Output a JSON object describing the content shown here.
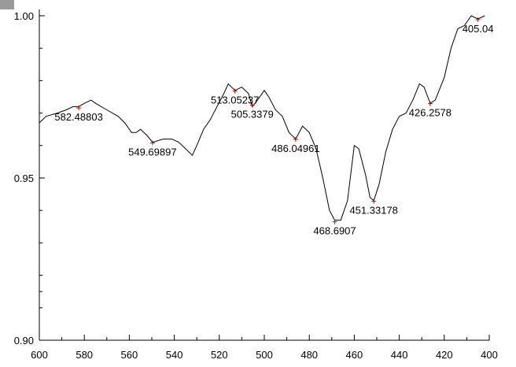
{
  "chart_data": {
    "type": "line",
    "title": "",
    "xlabel": "",
    "ylabel": "",
    "xlim": [
      600,
      400
    ],
    "ylim": [
      0.9,
      1.0
    ],
    "x_reversed": true,
    "grid": false,
    "x_ticks": [
      600,
      580,
      560,
      540,
      520,
      500,
      480,
      460,
      440,
      420,
      400
    ],
    "y_ticks": [
      {
        "value": 1.0,
        "label": "1.00"
      },
      {
        "value": 0.95,
        "label": "0.95"
      },
      {
        "value": 0.9,
        "label": "0.90"
      }
    ],
    "colors": {
      "line": "#000000",
      "marker": "#cc0000",
      "badge": "#9a9a9a"
    },
    "series": [
      {
        "points": [
          [
            600,
            0.967
          ],
          [
            597,
            0.969
          ],
          [
            592,
            0.97
          ],
          [
            588,
            0.971
          ],
          [
            585,
            0.972
          ],
          [
            582.5,
            0.972
          ],
          [
            580,
            0.973
          ],
          [
            577,
            0.974
          ],
          [
            575,
            0.973
          ],
          [
            570,
            0.971
          ],
          [
            565,
            0.969
          ],
          [
            562,
            0.967
          ],
          [
            559,
            0.964
          ],
          [
            557,
            0.964
          ],
          [
            555,
            0.965
          ],
          [
            552,
            0.963
          ],
          [
            549.7,
            0.961
          ],
          [
            545,
            0.962
          ],
          [
            541,
            0.962
          ],
          [
            538,
            0.961
          ],
          [
            535,
            0.959
          ],
          [
            532,
            0.957
          ],
          [
            530,
            0.96
          ],
          [
            527,
            0.965
          ],
          [
            524,
            0.968
          ],
          [
            521,
            0.972
          ],
          [
            518,
            0.976
          ],
          [
            516,
            0.979
          ],
          [
            513.05,
            0.977
          ],
          [
            510,
            0.978
          ],
          [
            507,
            0.976
          ],
          [
            505.34,
            0.972
          ],
          [
            503,
            0.974
          ],
          [
            500,
            0.977
          ],
          [
            498,
            0.975
          ],
          [
            495,
            0.971
          ],
          [
            492,
            0.969
          ],
          [
            489,
            0.964
          ],
          [
            486.05,
            0.962
          ],
          [
            483,
            0.966
          ],
          [
            480,
            0.964
          ],
          [
            477,
            0.959
          ],
          [
            474,
            0.95
          ],
          [
            471,
            0.94
          ],
          [
            468.69,
            0.937
          ],
          [
            466,
            0.937
          ],
          [
            463,
            0.943
          ],
          [
            460,
            0.96
          ],
          [
            458,
            0.959
          ],
          [
            455,
            0.951
          ],
          [
            453,
            0.944
          ],
          [
            451.33,
            0.943
          ],
          [
            449,
            0.948
          ],
          [
            446,
            0.958
          ],
          [
            443,
            0.965
          ],
          [
            440,
            0.969
          ],
          [
            437,
            0.97
          ],
          [
            434,
            0.974
          ],
          [
            431,
            0.979
          ],
          [
            429,
            0.978
          ],
          [
            426.26,
            0.973
          ],
          [
            424,
            0.974
          ],
          [
            420,
            0.981
          ],
          [
            417,
            0.99
          ],
          [
            414,
            0.996
          ],
          [
            411,
            0.997
          ],
          [
            408,
            1.0
          ],
          [
            405.04,
            0.999
          ],
          [
            402,
            1.0
          ]
        ]
      }
    ],
    "peaks": [
      {
        "x": 582.48803,
        "y": 0.9716,
        "label": "582.48803",
        "anchor": "below"
      },
      {
        "x": 549.69897,
        "y": 0.9608,
        "label": "549.69897",
        "anchor": "below"
      },
      {
        "x": 513.05237,
        "y": 0.9768,
        "label": "513.05237",
        "anchor": "below"
      },
      {
        "x": 505.3379,
        "y": 0.9724,
        "label": "505.3379",
        "anchor": "below"
      },
      {
        "x": 486.04961,
        "y": 0.9619,
        "label": "486.04961",
        "anchor": "below"
      },
      {
        "x": 468.6907,
        "y": 0.9365,
        "label": "468.6907",
        "anchor": "below"
      },
      {
        "x": 451.33178,
        "y": 0.9428,
        "label": "451.33178",
        "anchor": "below"
      },
      {
        "x": 426.2578,
        "y": 0.9729,
        "label": "426.2578",
        "anchor": "below"
      },
      {
        "x": 405.04,
        "y": 0.9988,
        "label": "405.04",
        "anchor": "below"
      }
    ]
  }
}
